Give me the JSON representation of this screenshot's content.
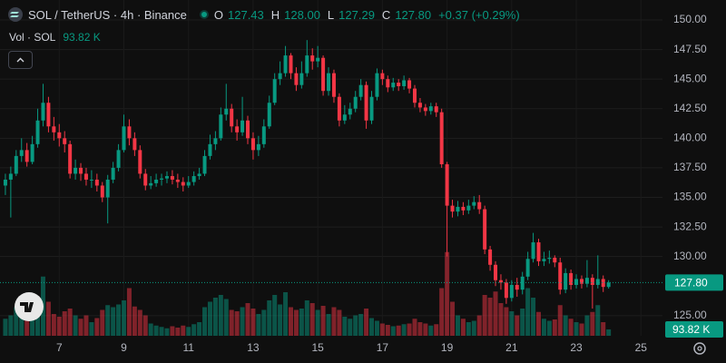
{
  "chart_data": {
    "type": "candlestick",
    "title": "SOL / TetherUS · 4h · Binance",
    "legend": {
      "ohlc_names": [
        "O",
        "H",
        "L",
        "C"
      ],
      "ohlc_values": [
        "127.43",
        "128.00",
        "127.29",
        "127.80"
      ],
      "change": "+0.37 (+0.29%)",
      "volume_name": "Vol · SOL",
      "volume_value": "93.82 K"
    },
    "last_price_label": "127.80",
    "last_volume_label": "93.82 K",
    "up_color": "#089981",
    "down_color": "#f23645",
    "grid": true,
    "xlim": [
      -1,
      122
    ],
    "xticks": [
      {
        "value": 10,
        "label": "7"
      },
      {
        "value": 22,
        "label": "9"
      },
      {
        "value": 34,
        "label": "11"
      },
      {
        "value": 46,
        "label": "13"
      },
      {
        "value": 58,
        "label": "15"
      },
      {
        "value": 70,
        "label": "17"
      },
      {
        "value": 82,
        "label": "19"
      },
      {
        "value": 94,
        "label": "21"
      },
      {
        "value": 106,
        "label": "23"
      },
      {
        "value": 118,
        "label": "25"
      }
    ],
    "ylim": [
      123.3,
      150
    ],
    "yticks": [
      {
        "value": 125,
        "label": "125.00"
      },
      {
        "value": 130,
        "label": "130.00"
      },
      {
        "value": 132.5,
        "label": "132.50"
      },
      {
        "value": 135,
        "label": "135.00"
      },
      {
        "value": 137.5,
        "label": "137.50"
      },
      {
        "value": 140,
        "label": "140.00"
      },
      {
        "value": 142.5,
        "label": "142.50"
      },
      {
        "value": 145,
        "label": "145.00"
      },
      {
        "value": 147.5,
        "label": "147.50"
      },
      {
        "value": 150,
        "label": "150.00"
      }
    ],
    "vlim": [
      0,
      1600
    ],
    "open": [
      136,
      136.5,
      137,
      138.5,
      139,
      138,
      139.5,
      141.5,
      143,
      141,
      140.5,
      140,
      139.5,
      137,
      137.5,
      137,
      136.5,
      136.5,
      136,
      135,
      136.5,
      137.5,
      139,
      141,
      140,
      139,
      137,
      136,
      136.2,
      136.5,
      136.6,
      136.8,
      136.5,
      136.3,
      136,
      136.3,
      136.8,
      137,
      138.5,
      139.5,
      140,
      142,
      142.5,
      141,
      140.5,
      141.5,
      140,
      139,
      139.5,
      141,
      143,
      145,
      145.5,
      147,
      145.5,
      144.5,
      145.5,
      147,
      146.5,
      146.8,
      144,
      145.5,
      143.5,
      141.5,
      142,
      142.5,
      143.5,
      144.5,
      141.5,
      143.5,
      145.5,
      145,
      144.3,
      144.7,
      144.4,
      144.9,
      144.2,
      143,
      142.6,
      142.3,
      142.7,
      142.2,
      137.8,
      134.3,
      133.8,
      134.2,
      133.9,
      134.3,
      134.6,
      134,
      130.6,
      129.3,
      128,
      127.8,
      126.5,
      127.6,
      127.2,
      128.3,
      129.8,
      131.2,
      129.6,
      129.8,
      129.9,
      129.5,
      127.2,
      128.6,
      127.6,
      128.1,
      127.7,
      128.2,
      127.6,
      128.1,
      127.43
    ],
    "high": [
      137,
      137.6,
      139,
      140,
      139.6,
      140.2,
      142.5,
      144.6,
      143.5,
      141.8,
      141.2,
      140.6,
      139.8,
      138.2,
      137.9,
      137.5,
      137.3,
      137,
      136.3,
      136.9,
      138,
      139.5,
      142,
      141.6,
      140.5,
      139.4,
      137.4,
      136.8,
      137,
      137,
      137.2,
      137.3,
      137,
      136.7,
      136.8,
      137.2,
      137.5,
      139,
      140.3,
      140.6,
      142.6,
      144.6,
      142.9,
      141.6,
      143.5,
      141.9,
      140.5,
      140.2,
      141.6,
      143.6,
      145.5,
      146.5,
      147.8,
      147.2,
      146,
      146.5,
      148.3,
      147.6,
      147.8,
      147,
      146,
      145.8,
      143.8,
      142.8,
      143,
      144,
      145,
      144.8,
      144,
      145.9,
      145.8,
      145.3,
      145.1,
      145,
      145.3,
      145.1,
      144.5,
      143.4,
      142.9,
      143,
      143,
      142.5,
      138,
      134.8,
      134.7,
      134.6,
      134.8,
      135.1,
      135.2,
      134.3,
      130.9,
      129.6,
      128.5,
      128.1,
      128,
      128.2,
      128.7,
      130.4,
      132,
      131.5,
      130.4,
      130.5,
      130.1,
      129.9,
      129,
      128.9,
      128.5,
      128.4,
      129.7,
      128.5,
      130.1,
      128.4,
      128
    ],
    "low": [
      135.2,
      133.3,
      136.8,
      138,
      137.6,
      137.8,
      139.2,
      141,
      140.5,
      139.8,
      139.3,
      138.8,
      136.6,
      136.5,
      136.4,
      136,
      135.8,
      135.5,
      134.6,
      132.8,
      136.2,
      137.2,
      138.8,
      139.4,
      138.5,
      136.6,
      135.6,
      135.7,
      135.9,
      136,
      136.2,
      136.1,
      135.8,
      135.5,
      135.8,
      136,
      136.5,
      136.8,
      138.2,
      139,
      139.8,
      141.5,
      140.5,
      139.8,
      140.2,
      139.5,
      138.2,
      138.5,
      139.2,
      140.8,
      142.8,
      144.5,
      145.2,
      145,
      144,
      144.2,
      145.2,
      145.8,
      146,
      143.6,
      143.6,
      143,
      141,
      141.2,
      141.6,
      142.2,
      143.2,
      140.8,
      141.2,
      143.2,
      144.5,
      143.9,
      144,
      144,
      144.1,
      143.8,
      142.6,
      142.2,
      141.9,
      142,
      141.8,
      137.5,
      130,
      133.3,
      133.4,
      133.5,
      133.6,
      134,
      133.6,
      130.2,
      128.8,
      127.5,
      127.2,
      126,
      126.2,
      126.6,
      126.8,
      128,
      129.5,
      129.2,
      129.2,
      129.4,
      129.1,
      126.8,
      126.9,
      127.2,
      127.3,
      127.3,
      127.4,
      125.6,
      127.3,
      127,
      127.29
    ],
    "close": [
      136.5,
      137,
      138.5,
      139,
      138,
      139.5,
      141.5,
      143,
      141,
      140.5,
      140,
      139.5,
      137,
      137.5,
      137,
      136.5,
      136.5,
      136,
      135,
      136.5,
      137.5,
      139,
      141,
      140,
      139,
      137,
      136,
      136.2,
      136.5,
      136.6,
      136.8,
      136.5,
      136.3,
      136,
      136.3,
      136.8,
      137,
      138.5,
      139.5,
      140,
      142,
      142.5,
      141,
      140.5,
      141.5,
      140,
      139,
      139.5,
      141,
      143,
      145,
      145.5,
      147,
      145.5,
      144.5,
      145.5,
      147,
      146.5,
      146.8,
      144,
      145.5,
      143.5,
      141.5,
      142,
      142.5,
      143.5,
      144.5,
      141.5,
      143.5,
      145.5,
      145,
      144.3,
      144.7,
      144.4,
      144.9,
      144.2,
      143,
      142.6,
      142.3,
      142.7,
      142.2,
      137.8,
      134.3,
      133.8,
      134.2,
      133.9,
      134.3,
      134.6,
      134,
      130.6,
      129.3,
      128,
      127.8,
      126.5,
      127.6,
      127.2,
      128.3,
      129.8,
      131.2,
      129.6,
      129.8,
      129.9,
      129.5,
      127.2,
      128.6,
      127.6,
      128.1,
      127.7,
      128.2,
      127.6,
      128.1,
      127.43,
      127.8
    ],
    "volume": [
      250,
      300,
      420,
      380,
      350,
      400,
      560,
      870,
      500,
      320,
      280,
      360,
      400,
      300,
      250,
      300,
      200,
      260,
      380,
      450,
      420,
      460,
      520,
      700,
      430,
      380,
      300,
      180,
      150,
      130,
      110,
      140,
      120,
      150,
      130,
      170,
      200,
      420,
      500,
      560,
      600,
      540,
      380,
      360,
      420,
      480,
      400,
      320,
      380,
      520,
      600,
      460,
      640,
      420,
      380,
      400,
      520,
      480,
      380,
      440,
      320,
      420,
      380,
      280,
      250,
      300,
      320,
      400,
      260,
      220,
      180,
      160,
      140,
      150,
      170,
      180,
      250,
      200,
      180,
      150,
      170,
      700,
      1230,
      500,
      300,
      250,
      200,
      220,
      300,
      600,
      560,
      650,
      480,
      420,
      360,
      300,
      400,
      700,
      560,
      350,
      250,
      220,
      240,
      450,
      300,
      250,
      200,
      180,
      300,
      350,
      450,
      200,
      93.82
    ]
  }
}
